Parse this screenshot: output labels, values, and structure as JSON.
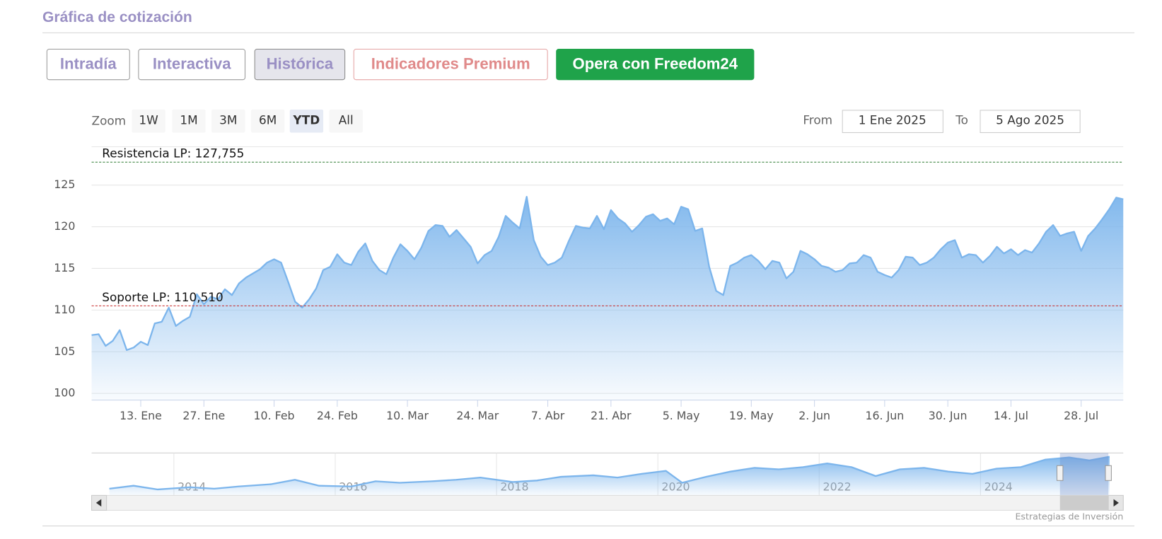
{
  "header": {
    "title": "Gráfica de cotización"
  },
  "buttons": [
    "Intradía",
    "Interactiva",
    "Histórica",
    "Indicadores Premium",
    "Opera con Freedom24"
  ],
  "range_selector": {
    "label": "Zoom",
    "buttons": [
      "1W",
      "1M",
      "3M",
      "6M",
      "YTD",
      "All"
    ],
    "selected": "YTD"
  },
  "date_range": {
    "from_label": "From",
    "from": "1 Ene 2025",
    "to_label": "To",
    "to": "5 Ago 2025"
  },
  "chart_data": [
    {
      "type": "area",
      "color": "#7cb5ec",
      "categories": [
        null,
        null,
        null,
        null,
        null,
        null,
        null,
        "13. Ene",
        null,
        null,
        null,
        null,
        null,
        null,
        null,
        null,
        "27. Ene",
        null,
        null,
        null,
        null,
        null,
        null,
        null,
        null,
        null,
        "10. Feb",
        null,
        null,
        null,
        null,
        null,
        null,
        null,
        null,
        "24. Feb",
        null,
        null,
        null,
        null,
        null,
        null,
        null,
        null,
        null,
        "10. Mar",
        null,
        null,
        null,
        null,
        null,
        null,
        null,
        null,
        null,
        "24. Mar",
        null,
        null,
        null,
        null,
        null,
        null,
        null,
        null,
        null,
        "7. Abr",
        null,
        null,
        null,
        null,
        null,
        null,
        null,
        null,
        "21. Abr",
        null,
        null,
        null,
        null,
        null,
        null,
        null,
        null,
        null,
        "5. May",
        null,
        null,
        null,
        null,
        null,
        null,
        null,
        null,
        null,
        "19. May",
        null,
        null,
        null,
        null,
        null,
        null,
        null,
        null,
        "2. Jun",
        null,
        null,
        null,
        null,
        null,
        null,
        null,
        null,
        null,
        "16. Jun",
        null,
        null,
        null,
        null,
        null,
        null,
        null,
        null,
        "30. Jun",
        null,
        null,
        null,
        null,
        null,
        null,
        null,
        null,
        "14. Jul",
        null,
        null,
        null,
        null,
        null,
        null,
        null,
        null,
        null,
        "28. Jul",
        null,
        null,
        null,
        null,
        null,
        null
      ],
      "values": [
        107.0,
        107.1,
        105.7,
        106.3,
        107.6,
        105.2,
        105.5,
        106.2,
        105.8,
        108.4,
        108.6,
        110.3,
        108.1,
        108.7,
        109.2,
        111.9,
        110.7,
        111.6,
        111.3,
        112.5,
        111.8,
        113.2,
        113.9,
        114.4,
        114.9,
        115.7,
        116.1,
        115.7,
        113.4,
        111.0,
        110.3,
        111.3,
        112.6,
        114.8,
        115.2,
        116.7,
        115.7,
        115.4,
        117.0,
        118.0,
        115.9,
        114.8,
        114.3,
        116.3,
        117.9,
        117.1,
        116.1,
        117.5,
        119.5,
        120.2,
        120.1,
        118.8,
        119.6,
        118.6,
        117.6,
        115.6,
        116.6,
        117.1,
        118.8,
        121.3,
        120.5,
        119.8,
        123.6,
        118.4,
        116.4,
        115.4,
        115.7,
        116.3,
        118.3,
        120.1,
        119.9,
        119.8,
        121.3,
        119.7,
        122.0,
        121.0,
        120.4,
        119.4,
        120.2,
        121.2,
        121.5,
        120.7,
        121.0,
        120.3,
        122.4,
        122.1,
        119.5,
        119.8,
        115.2,
        112.3,
        111.8,
        115.3,
        115.7,
        116.3,
        116.6,
        115.9,
        114.9,
        115.9,
        115.7,
        113.8,
        114.6,
        117.1,
        116.7,
        116.1,
        115.3,
        115.1,
        114.6,
        114.8,
        115.6,
        115.7,
        116.6,
        116.3,
        114.6,
        114.2,
        113.9,
        114.8,
        116.4,
        116.3,
        115.4,
        115.7,
        116.3,
        117.3,
        118.1,
        118.4,
        116.3,
        116.7,
        116.6,
        115.7,
        116.5,
        117.6,
        116.8,
        117.3,
        116.6,
        117.2,
        116.9,
        118.0,
        119.4,
        120.2,
        118.9,
        119.2,
        119.4,
        117.1,
        118.9,
        119.8,
        120.9,
        122.1,
        123.5,
        123.3
      ],
      "ylim": [
        99.2,
        129.6
      ],
      "yticks": [
        100,
        105,
        110,
        115,
        120,
        125
      ],
      "grid": true,
      "plot_lines": [
        {
          "value": 127.755,
          "label": "Resistencia LP: 127,755",
          "color": "#2e7d32"
        },
        {
          "value": 110.51,
          "label": "Soporte LP: 110,510",
          "color": "#c62828"
        }
      ]
    },
    {
      "type": "area",
      "color": "#7cb5ec",
      "x": [
        2013.2,
        2013.5,
        2013.8,
        2014.2,
        2014.5,
        2014.8,
        2015.2,
        2015.5,
        2015.8,
        2016.2,
        2016.5,
        2016.8,
        2017.2,
        2017.5,
        2017.8,
        2018.2,
        2018.5,
        2018.8,
        2019.2,
        2019.5,
        2019.8,
        2020.1,
        2020.3,
        2020.6,
        2020.9,
        2021.2,
        2021.5,
        2021.8,
        2022.1,
        2022.4,
        2022.7,
        2023.0,
        2023.3,
        2023.6,
        2023.9,
        2024.2,
        2024.5,
        2024.8,
        2025.1,
        2025.35,
        2025.6
      ],
      "values": [
        54.2,
        60.5,
        52.6,
        57.4,
        54.2,
        59.0,
        63.7,
        73.2,
        60.5,
        59.0,
        70.0,
        66.8,
        70.0,
        73.2,
        77.9,
        68.4,
        71.6,
        79.5,
        82.6,
        77.9,
        85.8,
        92.1,
        66.8,
        79.5,
        90.5,
        98.4,
        95.3,
        100.0,
        107.9,
        100.0,
        81.0,
        95.3,
        98.4,
        90.5,
        85.8,
        96.8,
        100.0,
        115.8,
        120.5,
        114.2,
        122.1
      ],
      "xlim": [
        2012.98,
        2025.77
      ],
      "xticks": [
        2014,
        2016,
        2018,
        2020,
        2022,
        2024
      ],
      "ylim": [
        40,
        130
      ]
    }
  ],
  "credit": "Estrategias de Inversión"
}
